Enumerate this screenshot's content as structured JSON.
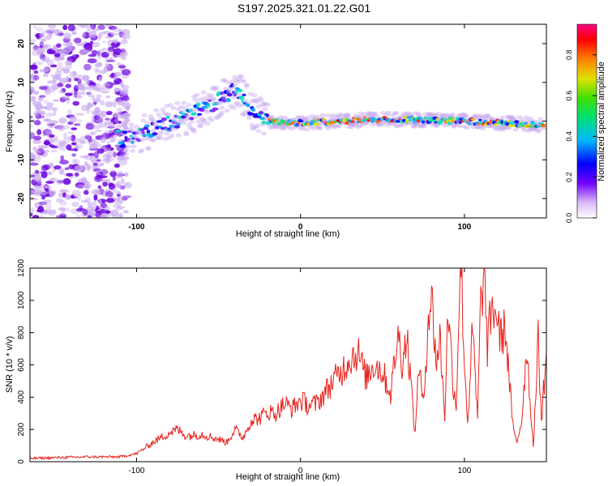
{
  "title": "S197.2025.321.01.22.G01",
  "colorbar_label": "Normalized spectral amplitude",
  "colorbar_ticks": [
    "0.0",
    "0.2",
    "0.4",
    "0.6",
    "0.8"
  ],
  "colors": {
    "snr_line": "#e8231e",
    "axis": "#000000",
    "spectrogram_weak": "#c8a8f0",
    "spectrogram_core": "#6a00e0"
  },
  "chart_data": [
    {
      "type": "heatmap",
      "title": "S197.2025.321.01.22.G01",
      "xlabel": "Height of straight line (km)",
      "ylabel": "Frequency (Hz)",
      "xlim": [
        -165,
        150
      ],
      "ylim": [
        -25,
        25
      ],
      "x_ticks": [
        {
          "value": -100,
          "label": "-100"
        },
        {
          "value": 0,
          "label": "0"
        },
        {
          "value": 100,
          "label": "100"
        }
      ],
      "y_ticks": [
        {
          "value": -20,
          "label": "-20"
        },
        {
          "value": -10,
          "label": "-10"
        },
        {
          "value": 0,
          "label": "0"
        },
        {
          "value": 10,
          "label": "10"
        },
        {
          "value": 20,
          "label": "20"
        }
      ],
      "colorbar_range": [
        0,
        0.95
      ],
      "center_line": [
        {
          "x": -110,
          "y": -5
        },
        {
          "x": -90,
          "y": -2
        },
        {
          "x": -70,
          "y": 1
        },
        {
          "x": -55,
          "y": 4
        },
        {
          "x": -45,
          "y": 7
        },
        {
          "x": -38,
          "y": 8
        },
        {
          "x": -30,
          "y": 3
        },
        {
          "x": -20,
          "y": 0
        },
        {
          "x": 0,
          "y": -0.5
        },
        {
          "x": 50,
          "y": 0.5
        },
        {
          "x": 100,
          "y": 0
        },
        {
          "x": 148,
          "y": -1
        }
      ]
    },
    {
      "type": "line",
      "xlabel": "Height of straight line (km)",
      "ylabel": "SNR (10 * v/v)",
      "xlim": [
        -165,
        150
      ],
      "ylim": [
        0,
        1200
      ],
      "x_ticks": [
        {
          "value": -100,
          "label": "-100"
        },
        {
          "value": 0,
          "label": "0"
        },
        {
          "value": 100,
          "label": "100"
        }
      ],
      "y_ticks": [
        {
          "value": 0,
          "label": "0"
        },
        {
          "value": 200,
          "label": "200"
        },
        {
          "value": 400,
          "label": "400"
        },
        {
          "value": 600,
          "label": "600"
        },
        {
          "value": 800,
          "label": "800"
        },
        {
          "value": 1000,
          "label": "1000"
        },
        {
          "value": 1200,
          "label": "1200"
        }
      ],
      "series": [
        {
          "name": "SNR",
          "x": [
            -165,
            -150,
            -130,
            -110,
            -100,
            -90,
            -80,
            -75,
            -70,
            -60,
            -50,
            -45,
            -40,
            -35,
            -30,
            -25,
            -20,
            -15,
            -10,
            -5,
            0,
            5,
            10,
            15,
            20,
            25,
            30,
            35,
            40,
            45,
            50,
            55,
            58,
            60,
            62,
            65,
            70,
            72,
            75,
            78,
            80,
            83,
            85,
            88,
            90,
            93,
            95,
            97,
            98,
            100,
            102,
            105,
            108,
            110,
            112,
            114,
            116,
            118,
            120,
            122,
            125,
            128,
            130,
            132,
            135,
            138,
            140,
            142,
            143,
            145,
            147,
            150
          ],
          "y": [
            20,
            25,
            30,
            30,
            50,
            120,
            180,
            200,
            160,
            170,
            140,
            120,
            200,
            150,
            260,
            270,
            310,
            300,
            360,
            330,
            380,
            350,
            360,
            430,
            500,
            560,
            640,
            680,
            520,
            610,
            560,
            420,
            680,
            780,
            620,
            780,
            160,
            620,
            340,
            920,
            1010,
            600,
            780,
            280,
            960,
            500,
            340,
            1080,
            1200,
            620,
            240,
            820,
            260,
            1000,
            1150,
            700,
            900,
            950,
            900,
            760,
            830,
            420,
            180,
            120,
            260,
            720,
            380,
            100,
            300,
            750,
            260,
            680
          ]
        }
      ]
    }
  ]
}
